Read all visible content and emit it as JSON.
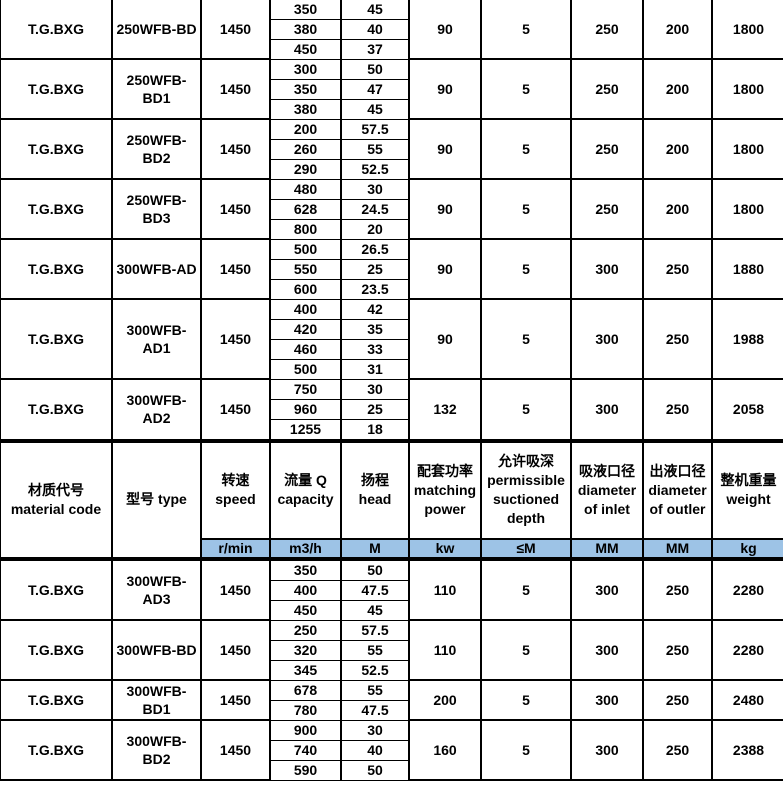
{
  "top_groups": [
    {
      "material": "T.G.BXG",
      "type": "250WFB-BD",
      "speed": "1450",
      "points": [
        [
          "350",
          "45"
        ],
        [
          "380",
          "40"
        ],
        [
          "450",
          "37"
        ]
      ],
      "power": "90",
      "suction": "5",
      "inlet": "250",
      "outlet": "200",
      "weight": "1800"
    },
    {
      "material": "T.G.BXG",
      "type": "250WFB-BD1",
      "speed": "1450",
      "points": [
        [
          "300",
          "50"
        ],
        [
          "350",
          "47"
        ],
        [
          "380",
          "45"
        ]
      ],
      "power": "90",
      "suction": "5",
      "inlet": "250",
      "outlet": "200",
      "weight": "1800"
    },
    {
      "material": "T.G.BXG",
      "type": "250WFB-BD2",
      "speed": "1450",
      "points": [
        [
          "200",
          "57.5"
        ],
        [
          "260",
          "55"
        ],
        [
          "290",
          "52.5"
        ]
      ],
      "power": "90",
      "suction": "5",
      "inlet": "250",
      "outlet": "200",
      "weight": "1800"
    },
    {
      "material": "T.G.BXG",
      "type": "250WFB-BD3",
      "speed": "1450",
      "points": [
        [
          "480",
          "30"
        ],
        [
          "628",
          "24.5"
        ],
        [
          "800",
          "20"
        ]
      ],
      "power": "90",
      "suction": "5",
      "inlet": "250",
      "outlet": "200",
      "weight": "1800"
    },
    {
      "material": "T.G.BXG",
      "type": "300WFB-AD",
      "speed": "1450",
      "points": [
        [
          "500",
          "26.5"
        ],
        [
          "550",
          "25"
        ],
        [
          "600",
          "23.5"
        ]
      ],
      "power": "90",
      "suction": "5",
      "inlet": "300",
      "outlet": "250",
      "weight": "1880"
    },
    {
      "material": "T.G.BXG",
      "type": "300WFB-AD1",
      "speed": "1450",
      "points": [
        [
          "400",
          "42"
        ],
        [
          "420",
          "35"
        ],
        [
          "460",
          "33"
        ],
        [
          "500",
          "31"
        ]
      ],
      "power": "90",
      "suction": "5",
      "inlet": "300",
      "outlet": "250",
      "weight": "1988"
    },
    {
      "material": "T.G.BXG",
      "type": "300WFB-AD2",
      "speed": "1450",
      "points": [
        [
          "750",
          "30"
        ],
        [
          "960",
          "25"
        ],
        [
          "1255",
          "18"
        ]
      ],
      "power": "132",
      "suction": "5",
      "inlet": "300",
      "outlet": "250",
      "weight": "2058"
    }
  ],
  "header": {
    "material": "材质代号 material code",
    "type": "型号 type",
    "speed": "转速 speed",
    "flow": "流量 Q capacity",
    "head": "扬程 head",
    "power": "配套功率 matching power",
    "suction": "允许吸深 permissible suctioned depth",
    "inlet": "吸液口径 diameter of inlet",
    "outlet": "出液口径 diameter of outler",
    "weight": "整机重量 weight"
  },
  "units": {
    "speed": "r/min",
    "flow": "m3/h",
    "head": "M",
    "power": "kw",
    "suction": "≤M",
    "inlet": "MM",
    "outlet": "MM",
    "weight": "kg"
  },
  "unit_row_color": "#9dc3e6",
  "bottom_groups": [
    {
      "material": "T.G.BXG",
      "type": "300WFB-AD3",
      "speed": "1450",
      "points": [
        [
          "350",
          "50"
        ],
        [
          "400",
          "47.5"
        ],
        [
          "450",
          "45"
        ]
      ],
      "power": "110",
      "suction": "5",
      "inlet": "300",
      "outlet": "250",
      "weight": "2280"
    },
    {
      "material": "T.G.BXG",
      "type": "300WFB-BD",
      "speed": "1450",
      "points": [
        [
          "250",
          "57.5"
        ],
        [
          "320",
          "55"
        ],
        [
          "345",
          "52.5"
        ]
      ],
      "power": "110",
      "suction": "5",
      "inlet": "300",
      "outlet": "250",
      "weight": "2280"
    },
    {
      "material": "T.G.BXG",
      "type": "300WFB-BD1",
      "speed": "1450",
      "points": [
        [
          "678",
          "55"
        ],
        [
          "780",
          "47.5"
        ]
      ],
      "power": "200",
      "suction": "5",
      "inlet": "300",
      "outlet": "250",
      "weight": "2480"
    },
    {
      "material": "T.G.BXG",
      "type": "300WFB-BD2",
      "speed": "1450",
      "points": [
        [
          "900",
          "30"
        ],
        [
          "740",
          "40"
        ],
        [
          "590",
          "50"
        ]
      ],
      "power": "160",
      "suction": "5",
      "inlet": "300",
      "outlet": "250",
      "weight": "2388"
    }
  ]
}
